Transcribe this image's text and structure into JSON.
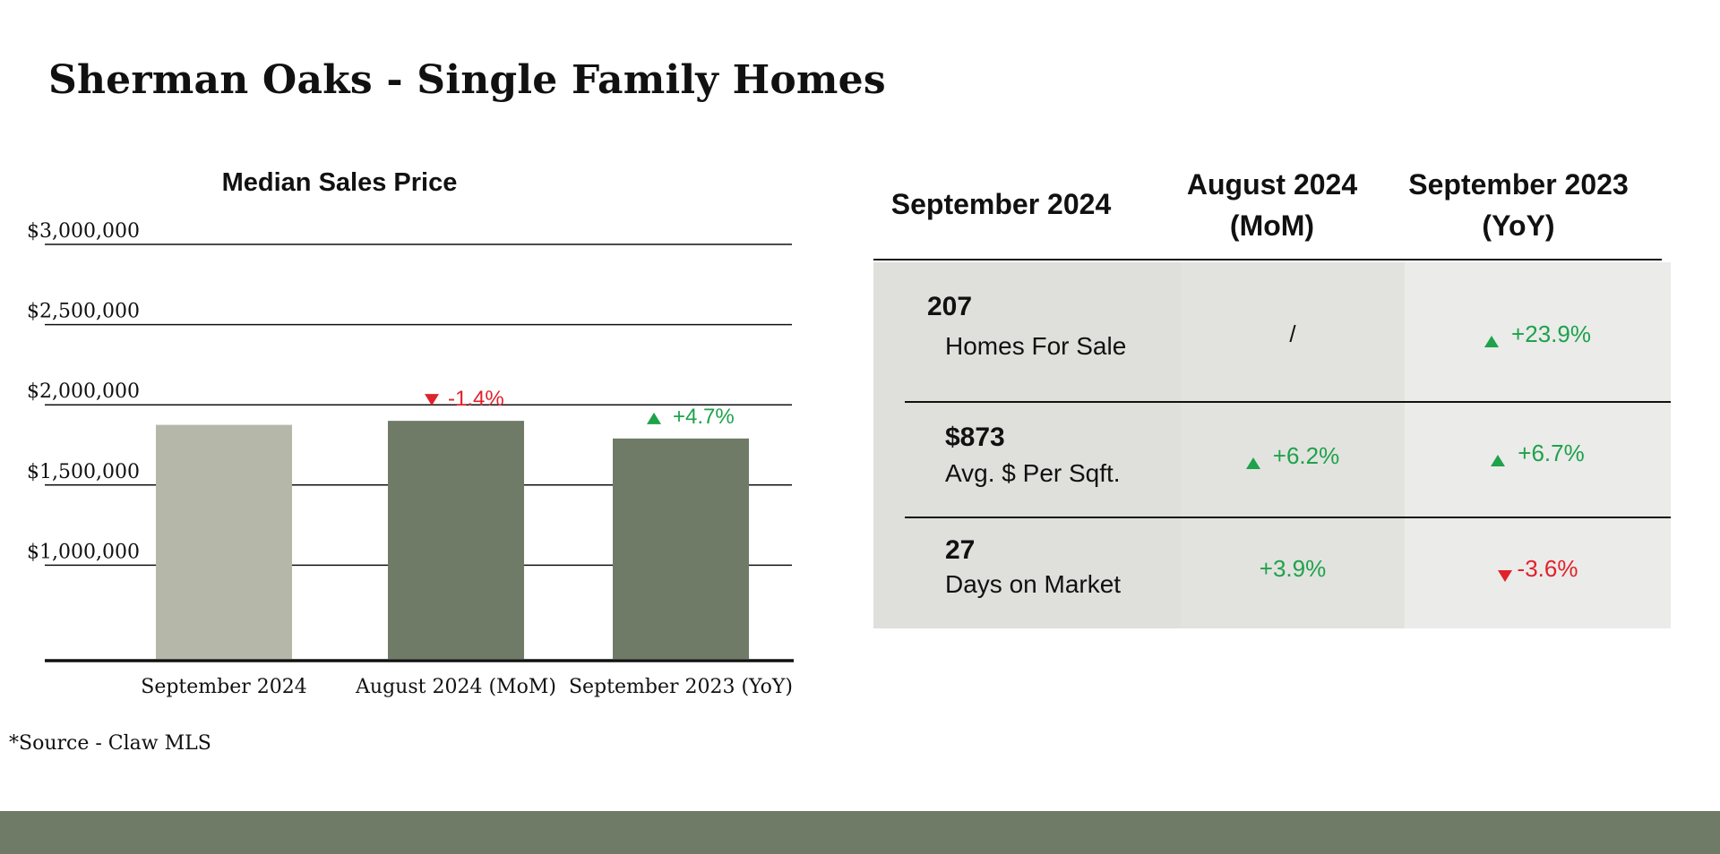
{
  "page": {
    "title": "Sherman Oaks - Single Family Homes",
    "source": "*Source - Claw MLS"
  },
  "colors": {
    "accent": "#6f7b66",
    "bar_light": "#b5b7a9",
    "bar_dark": "#6f7b66",
    "up": "#1ea24a",
    "down": "#e0222a"
  },
  "chart_data": {
    "type": "bar",
    "title": "Median Sales Price",
    "categories": [
      "September 2024",
      "August 2024 (MoM)",
      "September 2023 (YoY)"
    ],
    "values": [
      1875000,
      1900000,
      1790000
    ],
    "y_ticks": [
      1000000,
      1500000,
      2000000,
      2500000,
      3000000
    ],
    "y_tick_labels": [
      "$1,000,000",
      "$1,500,000",
      "$2,000,000",
      "$2,500,000",
      "$3,000,000"
    ],
    "ylim": [
      500000,
      3000000
    ],
    "xlabel": "",
    "ylabel": "",
    "grid": true,
    "annotations": [
      {
        "category": "August 2024 (MoM)",
        "text": "-1.4%",
        "direction": "down"
      },
      {
        "category": "September 2023 (YoY)",
        "text": "+4.7%",
        "direction": "up"
      }
    ]
  },
  "table": {
    "headers": [
      "September 2024",
      "August 2024\n(MoM)",
      "September 2023\n(YoY)"
    ],
    "rows": [
      {
        "value": "207",
        "label": "Homes For Sale",
        "mom": "/",
        "mom_dir": "none",
        "yoy": "+23.9%",
        "yoy_dir": "up"
      },
      {
        "value": "$873",
        "label": "Avg. $ Per Sqft.",
        "mom": "+6.2%",
        "mom_dir": "up",
        "yoy": "+6.7%",
        "yoy_dir": "up"
      },
      {
        "value": "27",
        "label": "Days on Market",
        "mom": "+3.9%",
        "mom_dir": "plain-up",
        "yoy": "-3.6%",
        "yoy_dir": "down"
      }
    ]
  }
}
